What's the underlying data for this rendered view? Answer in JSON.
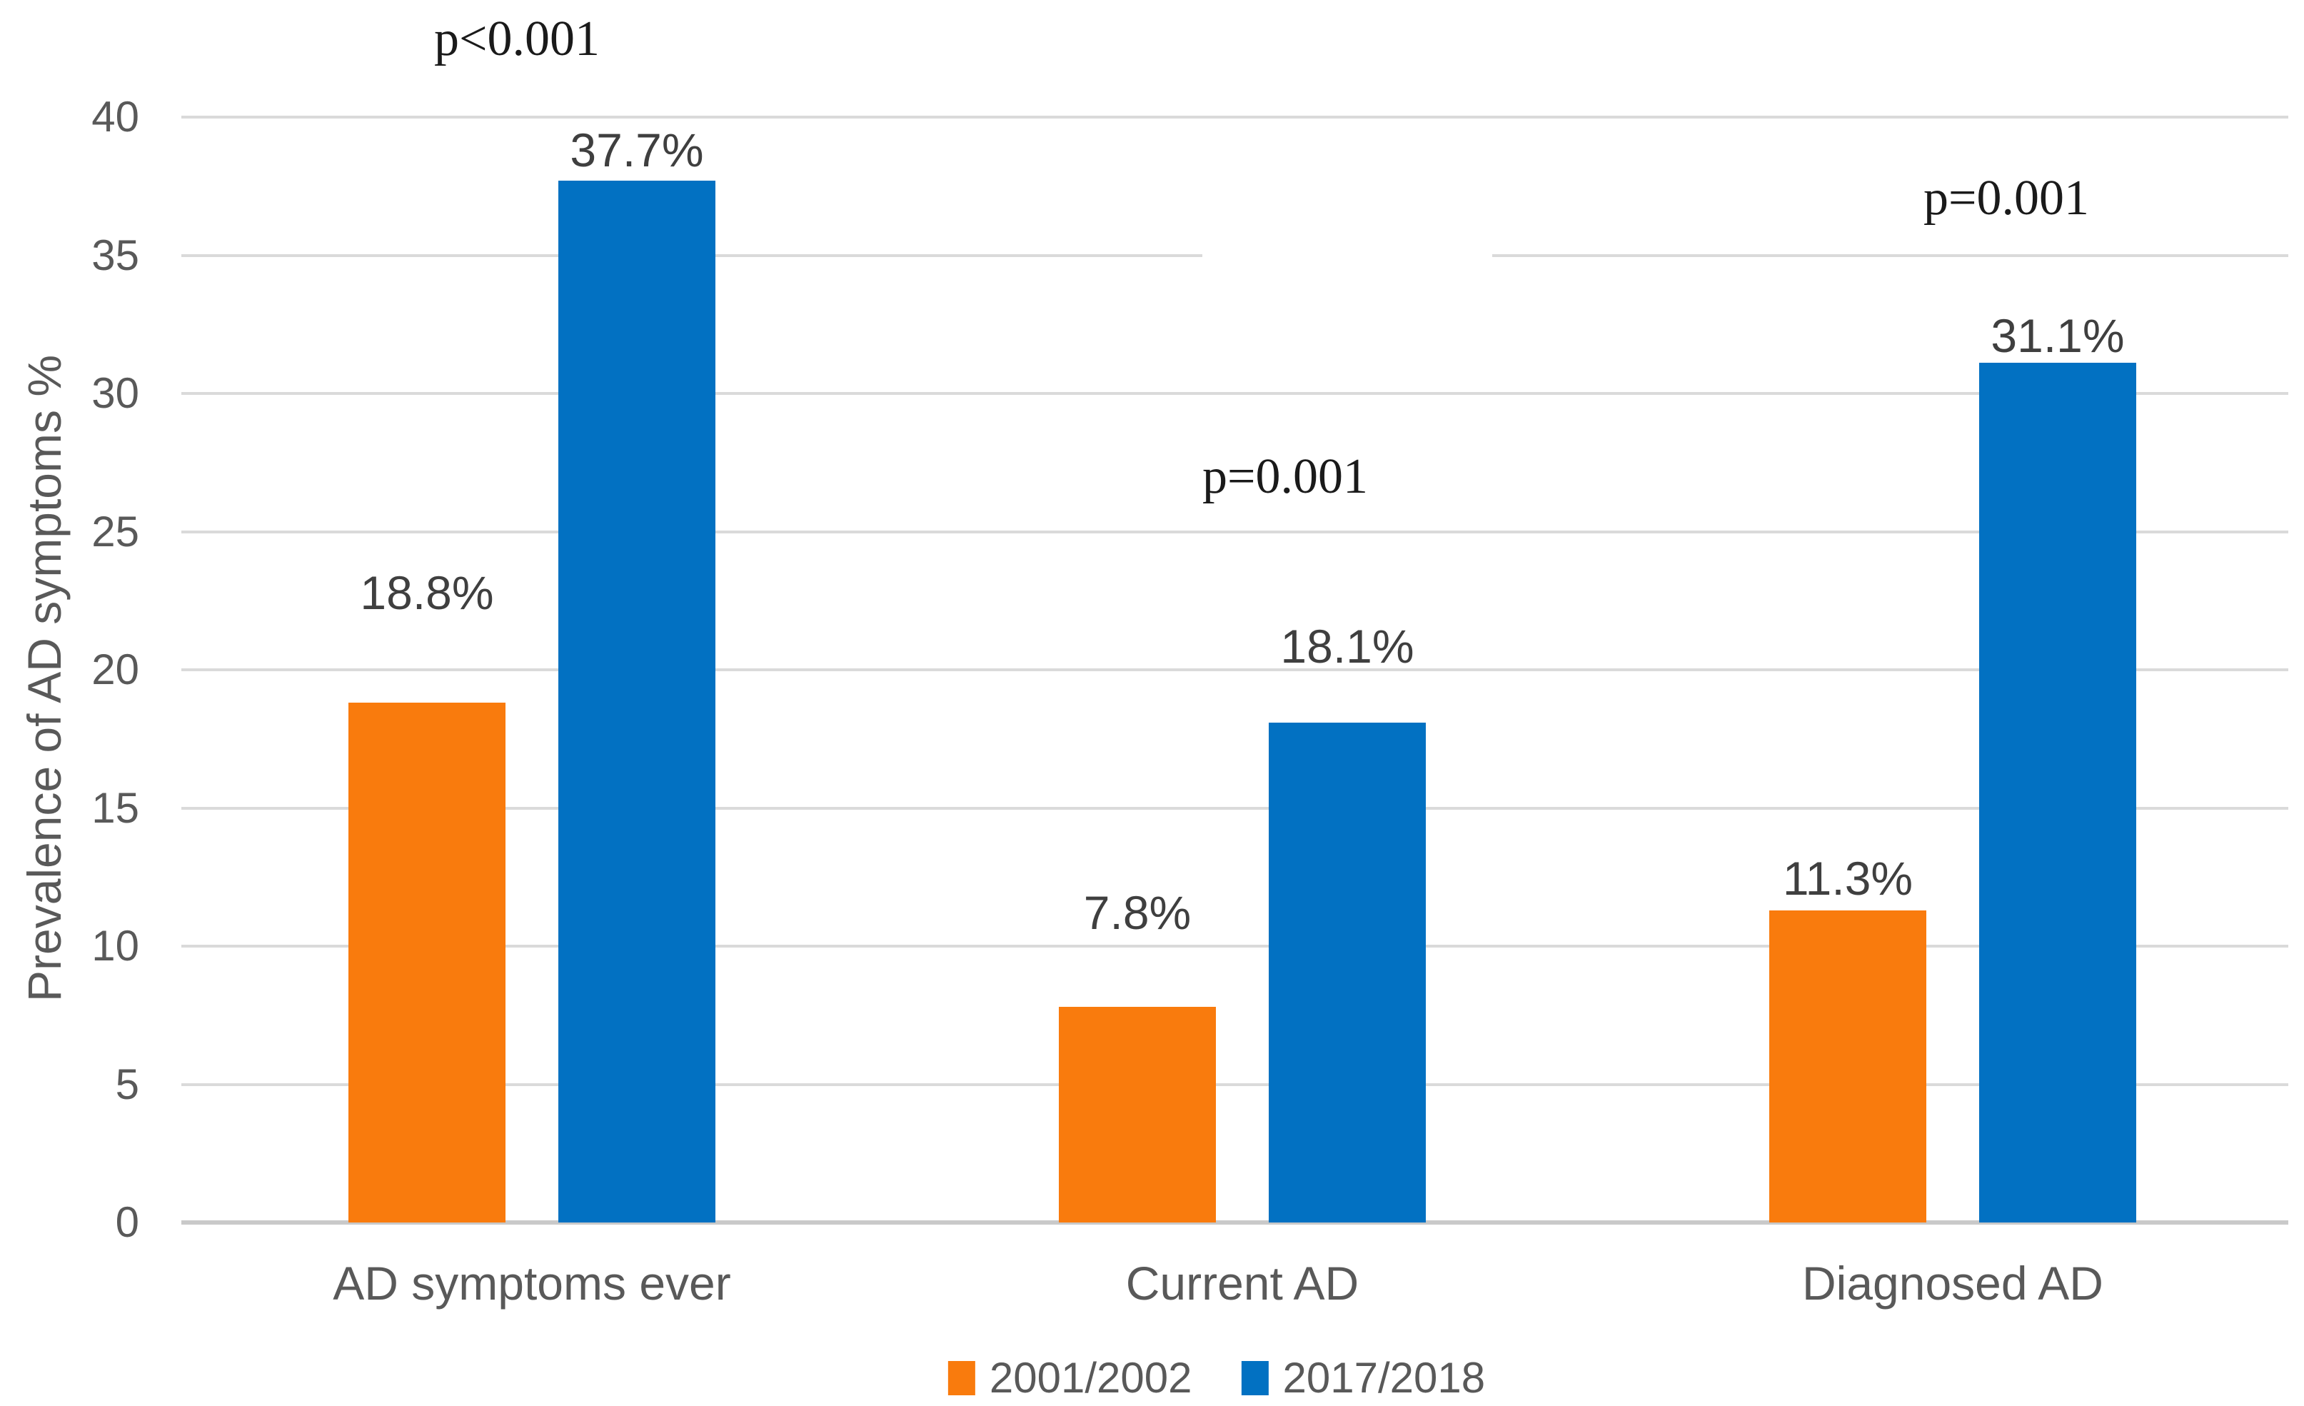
{
  "figure": {
    "ylabel": "Prevalence of AD symptoms %"
  },
  "chart_data": {
    "type": "bar",
    "title": "",
    "xlabel": "",
    "ylabel": "Prevalence of AD symptoms %",
    "categories": [
      "AD symptoms ever",
      "Current AD",
      "Diagnosed AD"
    ],
    "series": [
      {
        "name": "2001/2002",
        "color": "#F97B0D",
        "values": [
          18.8,
          7.8,
          11.3
        ],
        "value_labels": [
          "18.8%",
          "7.8%",
          "11.3%"
        ]
      },
      {
        "name": "2017/2018",
        "color": "#0271C2",
        "values": [
          37.7,
          18.1,
          31.1
        ],
        "value_labels": [
          "37.7%",
          "18.1%",
          "31.1%"
        ]
      }
    ],
    "annotations": [
      {
        "text": "p<0.001",
        "category": "AD symptoms ever"
      },
      {
        "text": "p=0.001",
        "category": "Current AD"
      },
      {
        "text": "p=0.001",
        "category": "Diagnosed AD"
      }
    ],
    "ylim": [
      0,
      40
    ],
    "yticks": [
      0,
      5,
      10,
      15,
      20,
      25,
      30,
      35,
      40
    ],
    "grid": true,
    "legend_position": "bottom",
    "gridline_color": "#DADADA",
    "axis_line_color": "#C9C9C9",
    "axis_text_color": "#595959",
    "data_label_color": "#3F3F3F",
    "p_value_color": "#1A1A1A"
  }
}
